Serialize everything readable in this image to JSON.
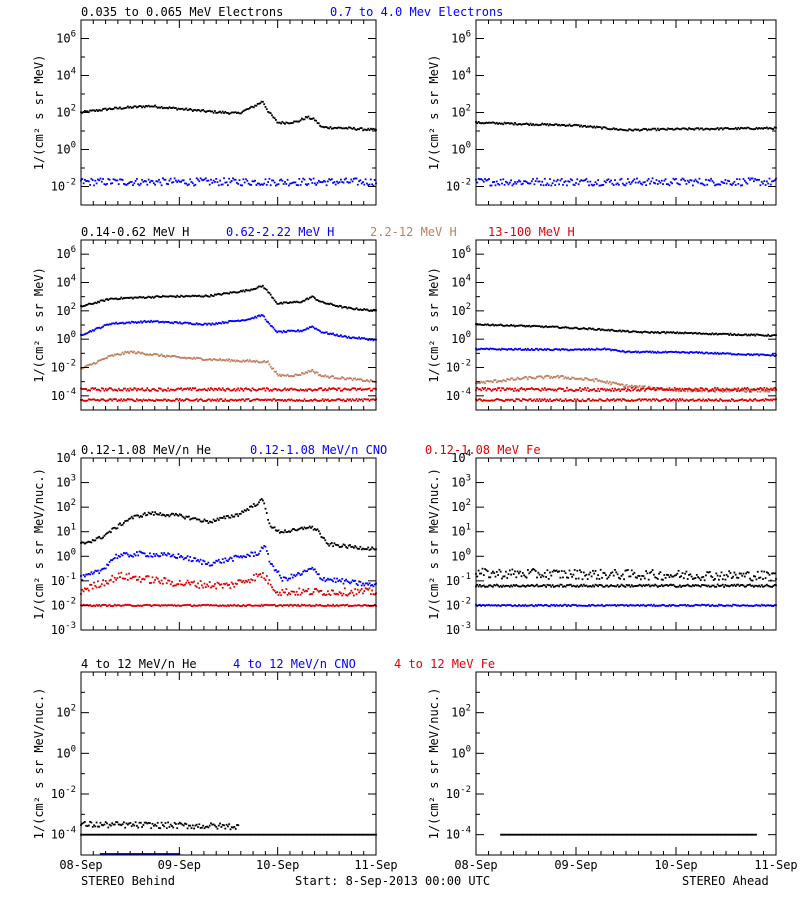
{
  "chart_data": {
    "type": "scatter",
    "x_tick_labels": [
      "08-Sep",
      "09-Sep",
      "10-Sep",
      "11-Sep"
    ],
    "x_range_days": [
      0,
      3
    ],
    "footer": {
      "left": "STEREO Behind",
      "center": "Start:  8-Sep-2013 00:00 UTC",
      "right": "STEREO Ahead"
    },
    "rows": [
      {
        "ylabel": "1/(cm² s sr MeV)",
        "ylog_range": [
          -3,
          7
        ],
        "yticks": [
          -2,
          0,
          2,
          4,
          6
        ],
        "legend": [
          {
            "text": "0.035 to 0.065 MeV Electrons",
            "color": "#000000"
          },
          {
            "text": "0.7 to 4.0 Mev Electrons",
            "color": "#0000ff"
          }
        ],
        "behind": [
          {
            "color": "#000000",
            "scatter": 0.06,
            "log_points": [
              [
                0,
                2.0
              ],
              [
                0.3,
                2.2
              ],
              [
                0.7,
                2.35
              ],
              [
                0.9,
                2.25
              ],
              [
                1.3,
                2.05
              ],
              [
                1.6,
                1.95
              ],
              [
                1.75,
                2.3
              ],
              [
                1.85,
                2.6
              ],
              [
                1.9,
                2.1
              ],
              [
                2.0,
                1.45
              ],
              [
                2.1,
                1.45
              ],
              [
                2.2,
                1.5
              ],
              [
                2.3,
                1.75
              ],
              [
                2.38,
                1.6
              ],
              [
                2.45,
                1.2
              ],
              [
                2.7,
                1.15
              ],
              [
                3.0,
                1.05
              ]
            ]
          },
          {
            "color": "#0000ff",
            "scatter": 0.2,
            "log_points": [
              [
                0,
                -1.75
              ],
              [
                3,
                -1.75
              ]
            ]
          }
        ],
        "ahead": [
          {
            "color": "#000000",
            "scatter": 0.05,
            "log_points": [
              [
                0,
                1.45
              ],
              [
                1.0,
                1.3
              ],
              [
                1.5,
                1.05
              ],
              [
                2.0,
                1.1
              ],
              [
                3.0,
                1.15
              ]
            ]
          },
          {
            "color": "#0000ff",
            "scatter": 0.2,
            "log_points": [
              [
                0,
                -1.75
              ],
              [
                3,
                -1.75
              ]
            ]
          }
        ]
      },
      {
        "ylabel": "1/(cm² s sr MeV)",
        "ylog_range": [
          -5,
          7
        ],
        "yticks": [
          -4,
          -2,
          0,
          2,
          4,
          6
        ],
        "legend": [
          {
            "text": "0.14-0.62 MeV H",
            "color": "#000000"
          },
          {
            "text": "0.62-2.22 MeV H",
            "color": "#0000ff"
          },
          {
            "text": "2.2-12 MeV H",
            "color": "#c08060"
          },
          {
            "text": "13-100 MeV H",
            "color": "#e00000"
          }
        ],
        "behind": [
          {
            "color": "#000000",
            "scatter": 0.06,
            "log_points": [
              [
                0,
                2.3
              ],
              [
                0.3,
                2.85
              ],
              [
                0.8,
                3.0
              ],
              [
                1.3,
                3.05
              ],
              [
                1.7,
                3.45
              ],
              [
                1.85,
                3.75
              ],
              [
                1.92,
                3.2
              ],
              [
                2.0,
                2.5
              ],
              [
                2.25,
                2.65
              ],
              [
                2.35,
                3.0
              ],
              [
                2.45,
                2.6
              ],
              [
                2.7,
                2.2
              ],
              [
                3.0,
                2.0
              ]
            ]
          },
          {
            "color": "#0000ff",
            "scatter": 0.06,
            "log_points": [
              [
                0,
                0.3
              ],
              [
                0.3,
                1.1
              ],
              [
                0.7,
                1.25
              ],
              [
                1.3,
                1.05
              ],
              [
                1.7,
                1.4
              ],
              [
                1.85,
                1.7
              ],
              [
                1.92,
                1.0
              ],
              [
                2.0,
                0.5
              ],
              [
                2.25,
                0.6
              ],
              [
                2.35,
                0.9
              ],
              [
                2.45,
                0.5
              ],
              [
                2.7,
                0.15
              ],
              [
                3.0,
                -0.05
              ]
            ]
          },
          {
            "color": "#c08060",
            "scatter": 0.08,
            "log_points": [
              [
                0,
                -2.1
              ],
              [
                0.3,
                -1.2
              ],
              [
                0.5,
                -0.9
              ],
              [
                1.0,
                -1.3
              ],
              [
                1.5,
                -1.5
              ],
              [
                1.9,
                -1.6
              ],
              [
                2.0,
                -2.55
              ],
              [
                2.2,
                -2.55
              ],
              [
                2.35,
                -2.2
              ],
              [
                2.45,
                -2.6
              ],
              [
                3.0,
                -3.0
              ]
            ]
          },
          {
            "color": "#e00000",
            "scatter": 0.1,
            "log_points": [
              [
                0,
                -3.55
              ],
              [
                3,
                -3.55
              ]
            ]
          },
          {
            "color": "#e00000",
            "scatter": 0.08,
            "log_points": [
              [
                0,
                -4.3
              ],
              [
                3,
                -4.3
              ]
            ]
          }
        ],
        "ahead": [
          {
            "color": "#000000",
            "scatter": 0.05,
            "log_points": [
              [
                0,
                1.05
              ],
              [
                0.8,
                0.85
              ],
              [
                1.2,
                0.7
              ],
              [
                1.6,
                0.5
              ],
              [
                2.0,
                0.45
              ],
              [
                2.5,
                0.35
              ],
              [
                3.0,
                0.25
              ]
            ]
          },
          {
            "color": "#0000ff",
            "scatter": 0.05,
            "log_points": [
              [
                0,
                -0.7
              ],
              [
                1.0,
                -0.75
              ],
              [
                1.3,
                -0.7
              ],
              [
                1.5,
                -0.9
              ],
              [
                2.2,
                -0.95
              ],
              [
                3.0,
                -1.15
              ]
            ]
          },
          {
            "color": "#c08060",
            "scatter": 0.1,
            "log_points": [
              [
                0,
                -3.1
              ],
              [
                0.5,
                -2.75
              ],
              [
                0.8,
                -2.65
              ],
              [
                1.2,
                -2.9
              ],
              [
                1.5,
                -3.3
              ],
              [
                2.0,
                -3.6
              ],
              [
                3.0,
                -3.65
              ]
            ]
          },
          {
            "color": "#e00000",
            "scatter": 0.12,
            "log_points": [
              [
                0,
                -3.55
              ],
              [
                3,
                -3.55
              ]
            ]
          },
          {
            "color": "#e00000",
            "scatter": 0.08,
            "log_points": [
              [
                0,
                -4.3
              ],
              [
                3,
                -4.3
              ]
            ]
          }
        ]
      },
      {
        "ylabel": "1/(cm² s sr MeV/nuc.)",
        "ylog_range": [
          -3,
          4
        ],
        "yticks": [
          -3,
          -2,
          -1,
          0,
          1,
          2,
          3,
          4
        ],
        "legend": [
          {
            "text": "0.12-1.08 MeV/n He",
            "color": "#000000"
          },
          {
            "text": "0.12-1.08 MeV/n CNO",
            "color": "#0000ff"
          },
          {
            "text": "0.12-1.08 MeV Fe",
            "color": "#e00000"
          }
        ],
        "behind": [
          {
            "color": "#000000",
            "scatter": 0.07,
            "log_points": [
              [
                0,
                0.5
              ],
              [
                0.2,
                0.75
              ],
              [
                0.5,
                1.55
              ],
              [
                0.7,
                1.75
              ],
              [
                1.0,
                1.65
              ],
              [
                1.3,
                1.4
              ],
              [
                1.6,
                1.7
              ],
              [
                1.75,
                2.05
              ],
              [
                1.85,
                2.3
              ],
              [
                1.92,
                1.3
              ],
              [
                2.0,
                1.0
              ],
              [
                2.2,
                1.05
              ],
              [
                2.3,
                1.2
              ],
              [
                2.4,
                1.1
              ],
              [
                2.5,
                0.5
              ],
              [
                2.7,
                0.4
              ],
              [
                3.0,
                0.3
              ]
            ]
          },
          {
            "color": "#0000ff",
            "scatter": 0.1,
            "log_points": [
              [
                0,
                -0.9
              ],
              [
                0.2,
                -0.6
              ],
              [
                0.35,
                0.0
              ],
              [
                0.6,
                0.1
              ],
              [
                1.0,
                0.0
              ],
              [
                1.3,
                -0.3
              ],
              [
                1.6,
                -0.05
              ],
              [
                1.82,
                0.15
              ],
              [
                1.86,
                0.5
              ],
              [
                1.92,
                -0.2
              ],
              [
                2.05,
                -0.95
              ],
              [
                2.25,
                -0.7
              ],
              [
                2.35,
                -0.5
              ],
              [
                2.45,
                -0.9
              ],
              [
                3.0,
                -1.2
              ]
            ]
          },
          {
            "color": "#e00000",
            "scatter": 0.15,
            "log_points": [
              [
                0,
                -1.4
              ],
              [
                0.4,
                -0.8
              ],
              [
                1.0,
                -1.1
              ],
              [
                1.5,
                -1.2
              ],
              [
                1.85,
                -0.75
              ],
              [
                2.0,
                -1.45
              ],
              [
                3.0,
                -1.45
              ]
            ]
          },
          {
            "color": "#e00000",
            "scatter": 0.03,
            "log_points": [
              [
                0,
                -2.0
              ],
              [
                3,
                -2.0
              ]
            ]
          }
        ],
        "ahead": [
          {
            "color": "#000000",
            "scatter": 0.2,
            "log_points": [
              [
                0,
                -0.7
              ],
              [
                1.5,
                -0.75
              ],
              [
                3,
                -0.8
              ]
            ]
          },
          {
            "color": "#000000",
            "scatter": 0.05,
            "log_points": [
              [
                0,
                -1.2
              ],
              [
                3,
                -1.2
              ]
            ]
          },
          {
            "color": "#0000ff",
            "scatter": 0.03,
            "log_points": [
              [
                0,
                -2.0
              ],
              [
                3,
                -2.0
              ]
            ]
          }
        ]
      },
      {
        "ylabel": "1/(cm² s sr MeV/nuc.)",
        "ylog_range": [
          -5,
          4
        ],
        "yticks": [
          -4,
          -2,
          0,
          2
        ],
        "legend": [
          {
            "text": "4 to 12 MeV/n He",
            "color": "#000000"
          },
          {
            "text": "4 to 12 MeV/n CNO",
            "color": "#0000ff"
          },
          {
            "text": "4 to 12 MeV Fe",
            "color": "#e00000"
          }
        ],
        "behind": [
          {
            "color": "#000000",
            "scatter": 0.15,
            "x_end": 1.6,
            "log_points": [
              [
                0,
                -3.5
              ],
              [
                1.0,
                -3.55
              ],
              [
                1.6,
                -3.6
              ]
            ]
          },
          {
            "color": "#000000",
            "scatter": 0.0,
            "log_points": [
              [
                0,
                -4.0
              ],
              [
                3,
                -4.0
              ]
            ]
          },
          {
            "color": "#0000ff",
            "scatter": 0.0,
            "x_end": 1.0,
            "log_points": [
              [
                0.2,
                -4.95
              ],
              [
                1.0,
                -4.95
              ]
            ]
          }
        ],
        "ahead": [
          {
            "color": "#000000",
            "scatter": 0.0,
            "log_points": [
              [
                0.25,
                -4.0
              ],
              [
                2.8,
                -4.0
              ]
            ]
          }
        ]
      }
    ]
  }
}
